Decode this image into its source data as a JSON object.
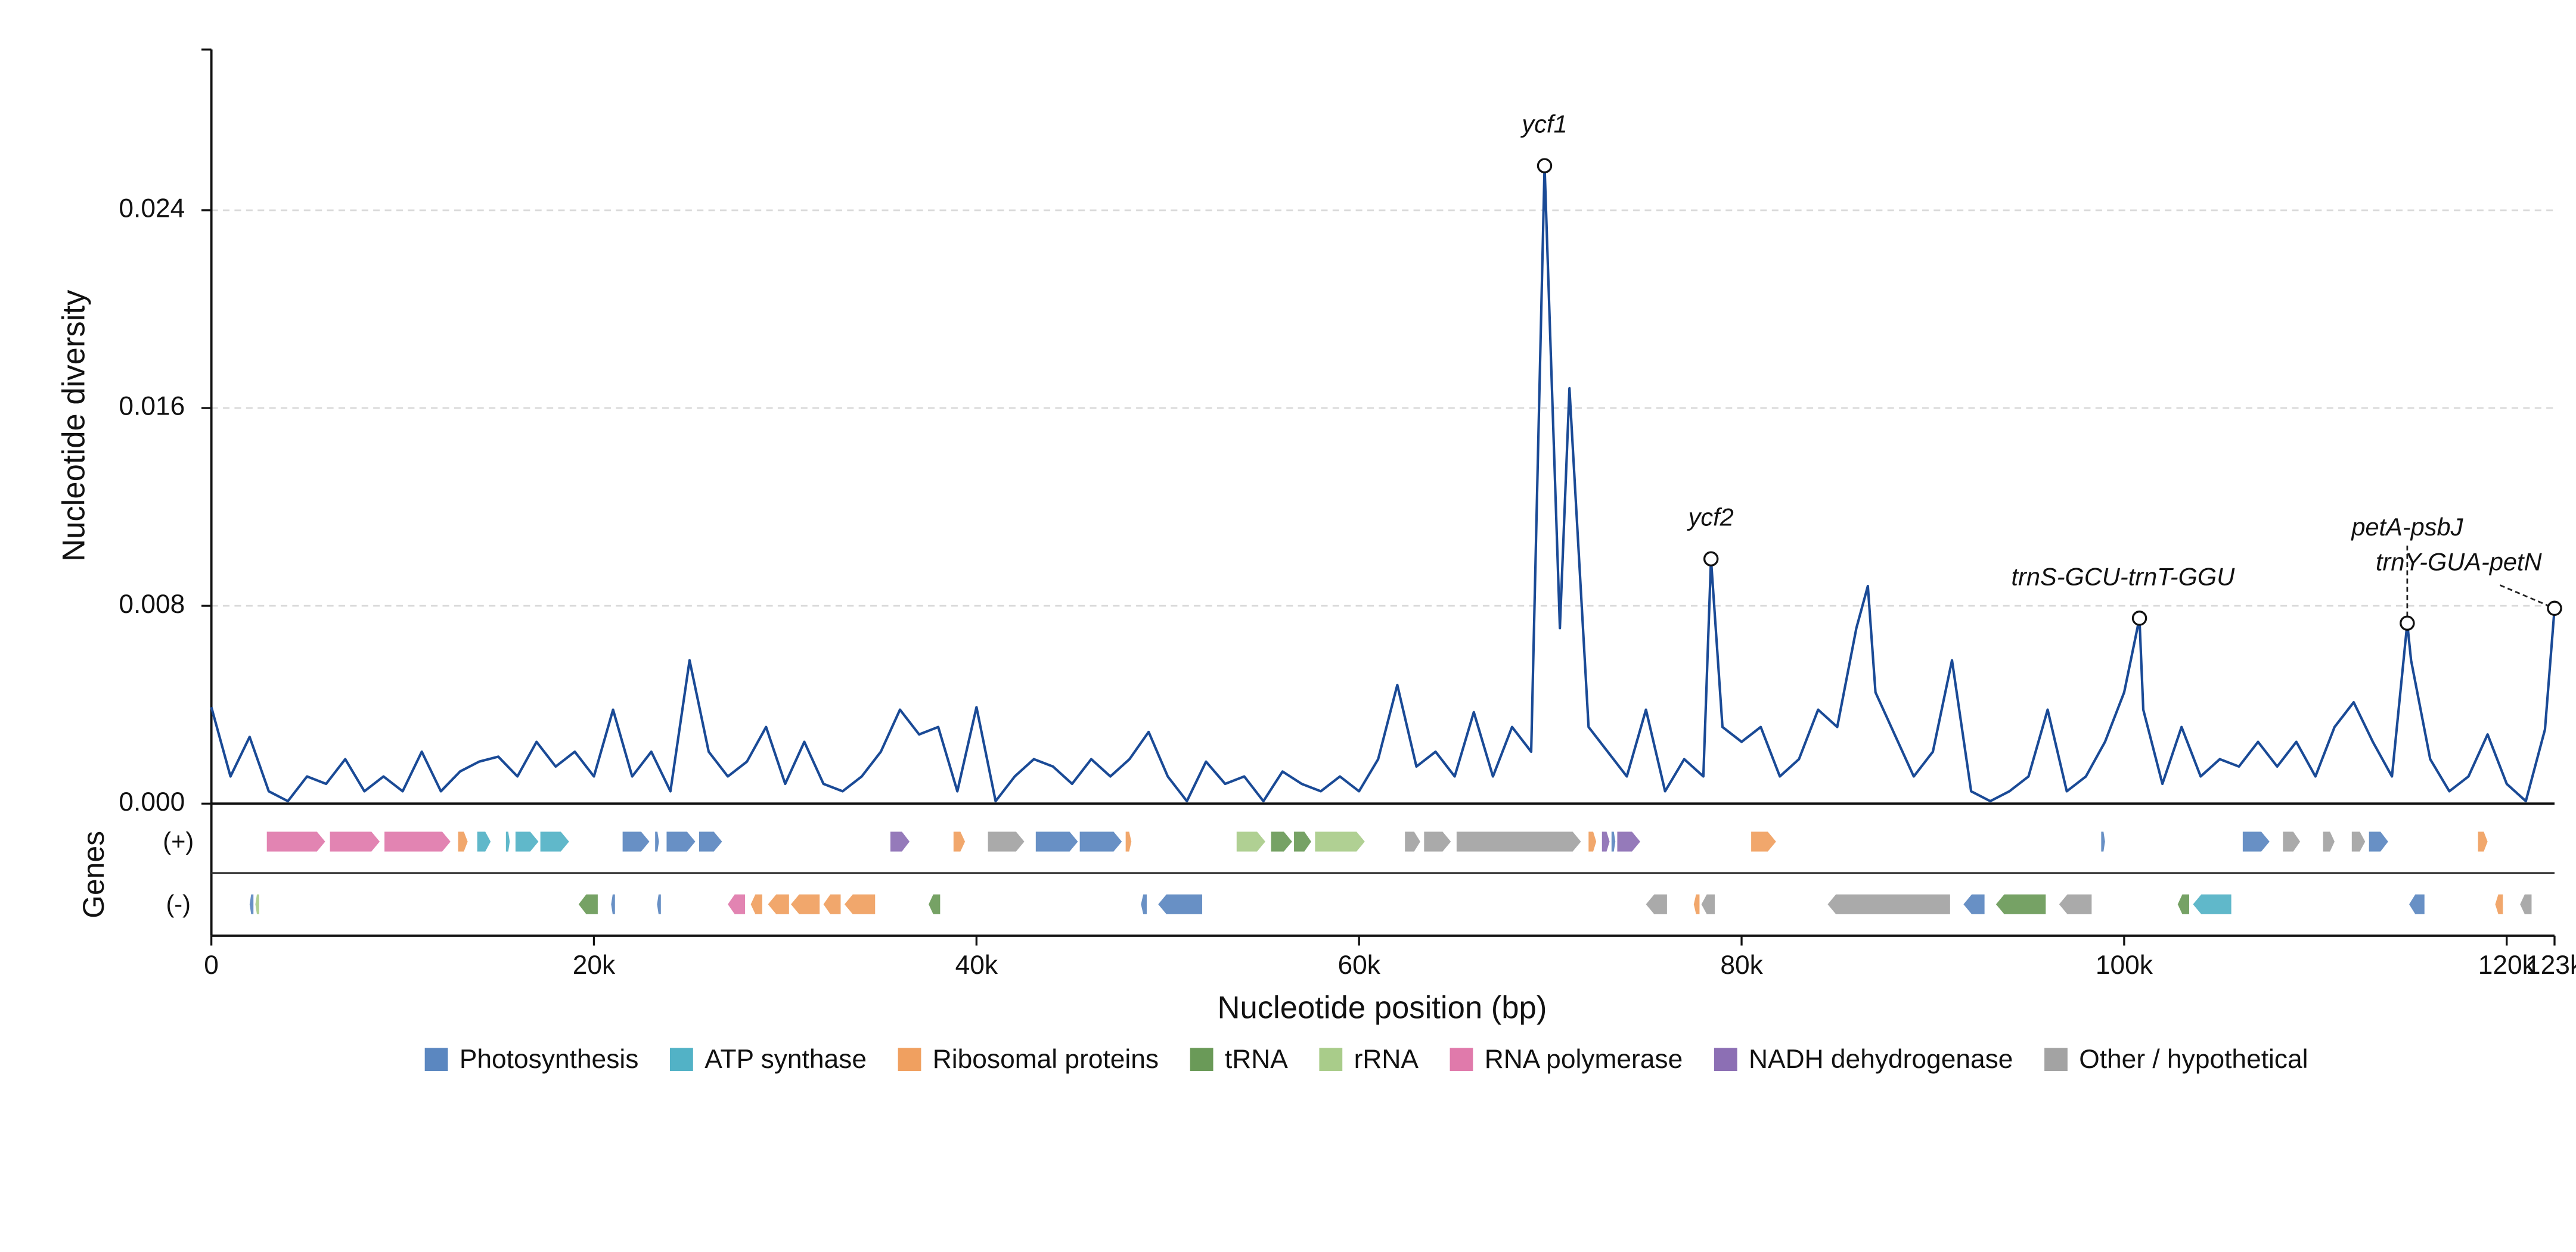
{
  "chart_data": {
    "type": "line",
    "y_label": "Nucleotide diversity",
    "x_label": "Nucleotide position (bp)",
    "color": "#1a4a96",
    "grid": true,
    "xlim": [
      0,
      122500
    ],
    "ylim": [
      0,
      0.0305
    ],
    "xticks": [
      0,
      {
        "value": 20000,
        "label": "20k"
      },
      {
        "value": 40000,
        "label": "40k"
      },
      {
        "value": 60000,
        "label": "60k"
      },
      {
        "value": 80000,
        "label": "80k"
      },
      {
        "value": 100000,
        "label": "100k"
      },
      {
        "value": 120000,
        "label": "120k"
      },
      {
        "value": 122500,
        "label": "123k"
      }
    ],
    "yticks": [
      {
        "value": 0,
        "label": "0.000"
      },
      0.008,
      0.016,
      0.024
    ],
    "x": [
      0,
      1000,
      2000,
      3000,
      4000,
      5000,
      6000,
      7000,
      8000,
      9000,
      10000,
      11000,
      12000,
      13000,
      14000,
      15000,
      16000,
      17000,
      18000,
      19000,
      20000,
      21000,
      22000,
      23000,
      24000,
      25000,
      26000,
      27000,
      28000,
      29000,
      30000,
      31000,
      32000,
      33000,
      34000,
      35000,
      36000,
      37000,
      38000,
      39000,
      40000,
      41000,
      42000,
      43000,
      44000,
      45000,
      46000,
      47000,
      48000,
      49000,
      50000,
      51000,
      52000,
      53000,
      54000,
      55000,
      56000,
      57000,
      58000,
      59000,
      60000,
      61000,
      62000,
      63000,
      64000,
      65000,
      66000,
      67000,
      68000,
      69000,
      69700,
      70500,
      71000,
      72000,
      73000,
      74000,
      75000,
      76000,
      77000,
      78000,
      78400,
      79000,
      80000,
      81000,
      82000,
      83000,
      84000,
      85000,
      86000,
      86600,
      87000,
      88000,
      89000,
      90000,
      91000,
      92000,
      93000,
      94000,
      95000,
      96000,
      97000,
      98000,
      99000,
      100000,
      100800,
      101000,
      102000,
      103000,
      104000,
      105000,
      106000,
      107000,
      108000,
      109000,
      110000,
      111000,
      112000,
      113000,
      114000,
      114800,
      115000,
      116000,
      117000,
      118000,
      119000,
      120000,
      121000,
      122000,
      122500
    ],
    "values": [
      0.0039,
      0.0011,
      0.0027,
      0.0005,
      0.0001,
      0.0011,
      0.0008,
      0.0018,
      0.0005,
      0.0011,
      0.0005,
      0.0021,
      0.0005,
      0.0013,
      0.0017,
      0.0019,
      0.0011,
      0.0025,
      0.0015,
      0.0021,
      0.0011,
      0.0038,
      0.0011,
      0.0021,
      0.0005,
      0.0058,
      0.0021,
      0.0011,
      0.0017,
      0.0031,
      0.0008,
      0.0025,
      0.0008,
      0.0005,
      0.0011,
      0.0021,
      0.0038,
      0.0028,
      0.0031,
      0.0005,
      0.0039,
      0.0001,
      0.0011,
      0.0018,
      0.0015,
      0.0008,
      0.0018,
      0.0011,
      0.0018,
      0.0029,
      0.0011,
      0.0001,
      0.0017,
      0.0008,
      0.0011,
      0.0001,
      0.0013,
      0.0008,
      0.0005,
      0.0011,
      0.0005,
      0.0018,
      0.0048,
      0.0015,
      0.0021,
      0.0011,
      0.0037,
      0.0011,
      0.0031,
      0.0021,
      0.0258,
      0.0071,
      0.0168,
      0.0031,
      0.0021,
      0.0011,
      0.0038,
      0.0005,
      0.0018,
      0.0011,
      0.0099,
      0.0031,
      0.0025,
      0.0031,
      0.0011,
      0.0018,
      0.0038,
      0.0031,
      0.0071,
      0.0088,
      0.0045,
      0.0028,
      0.0011,
      0.0021,
      0.0058,
      0.0005,
      0.0001,
      0.0005,
      0.0011,
      0.0038,
      0.0005,
      0.0011,
      0.0025,
      0.0045,
      0.0075,
      0.0038,
      0.0008,
      0.0031,
      0.0011,
      0.0018,
      0.0015,
      0.0025,
      0.0015,
      0.0025,
      0.0011,
      0.0031,
      0.0041,
      0.0025,
      0.0011,
      0.0073,
      0.0058,
      0.0018,
      0.0005,
      0.0011,
      0.0028,
      0.0008,
      0.0001,
      0.003,
      0.0079
    ],
    "annotations": [
      {
        "text": "ycf1",
        "x": 69700,
        "y": 0.0258
      },
      {
        "text": "ycf2",
        "x": 78400,
        "y": 0.0099
      },
      {
        "text": "trnS-GCU-trnT-GGU",
        "x": 100800,
        "y": 0.0075
      },
      {
        "text": "petA-psbJ",
        "x": 114800,
        "y": 0.0073,
        "leader": true
      },
      {
        "text": "trnY-GUA-petN",
        "x": 122500,
        "y": 0.0079,
        "leader": true
      }
    ],
    "gene_track_label": "Genes",
    "strand_labels": [
      "(+)",
      "(-)"
    ],
    "gene_categories": [
      {
        "name": "Photosynthesis",
        "color": "#5b87c0"
      },
      {
        "name": "ATP synthase",
        "color": "#52b2c6"
      },
      {
        "name": "Ribosomal proteins",
        "color": "#f0a060"
      },
      {
        "name": "tRNA",
        "color": "#6a9a58"
      },
      {
        "name": "rRNA",
        "color": "#a9cc8a"
      },
      {
        "name": "RNA polymerase",
        "color": "#e07aab"
      },
      {
        "name": "NADH dehydrogenase",
        "color": "#8c6fb4"
      },
      {
        "name": "Other / hypothetical",
        "color": "#a3a3a3"
      }
    ],
    "genes_plus": [
      [
        2900,
        5950,
        5
      ],
      [
        6200,
        8800,
        5
      ],
      [
        9050,
        12500,
        5
      ],
      [
        12900,
        13400,
        2
      ],
      [
        13900,
        14600,
        1
      ],
      [
        15400,
        15600,
        1
      ],
      [
        15900,
        17100,
        1
      ],
      [
        17200,
        18700,
        1
      ],
      [
        21500,
        22900,
        0
      ],
      [
        23200,
        23400,
        0
      ],
      [
        23800,
        25300,
        0
      ],
      [
        25500,
        26700,
        0
      ],
      [
        35500,
        36500,
        6
      ],
      [
        38800,
        39400,
        2
      ],
      [
        40600,
        42500,
        7
      ],
      [
        43100,
        45300,
        0
      ],
      [
        45400,
        47600,
        0
      ],
      [
        47800,
        48100,
        2
      ],
      [
        53600,
        55100,
        4
      ],
      [
        55400,
        56500,
        3
      ],
      [
        56600,
        57500,
        3
      ],
      [
        57700,
        60300,
        4
      ],
      [
        62400,
        63200,
        7
      ],
      [
        63400,
        64800,
        7
      ],
      [
        65100,
        71600,
        7
      ],
      [
        72000,
        72400,
        2
      ],
      [
        72700,
        73100,
        6
      ],
      [
        73200,
        73400,
        0
      ],
      [
        73500,
        74700,
        6
      ],
      [
        80500,
        81800,
        2
      ],
      [
        98800,
        99000,
        0
      ],
      [
        106200,
        107600,
        0
      ],
      [
        108300,
        109200,
        7
      ],
      [
        110400,
        111000,
        7
      ],
      [
        111900,
        112600,
        7
      ],
      [
        112800,
        113800,
        0
      ],
      [
        118500,
        119000,
        2
      ]
    ],
    "genes_minus": [
      [
        2000,
        2200,
        0
      ],
      [
        2300,
        2500,
        4
      ],
      [
        19200,
        20200,
        3
      ],
      [
        20900,
        21100,
        0
      ],
      [
        23300,
        23500,
        0
      ],
      [
        27000,
        27900,
        5
      ],
      [
        28200,
        28800,
        2
      ],
      [
        29100,
        30200,
        2
      ],
      [
        30300,
        31800,
        2
      ],
      [
        32000,
        32900,
        2
      ],
      [
        33100,
        34700,
        2
      ],
      [
        37500,
        38100,
        3
      ],
      [
        48600,
        48900,
        0
      ],
      [
        49500,
        51800,
        0
      ],
      [
        75000,
        76100,
        7
      ],
      [
        77500,
        77800,
        2
      ],
      [
        77900,
        78600,
        7
      ],
      [
        84500,
        90900,
        7
      ],
      [
        91600,
        92700,
        0
      ],
      [
        93300,
        95900,
        3
      ],
      [
        96600,
        98300,
        7
      ],
      [
        102800,
        103400,
        3
      ],
      [
        103600,
        105600,
        1
      ],
      [
        114900,
        115700,
        0
      ],
      [
        119400,
        119800,
        2
      ],
      [
        120700,
        121300,
        7
      ]
    ]
  }
}
